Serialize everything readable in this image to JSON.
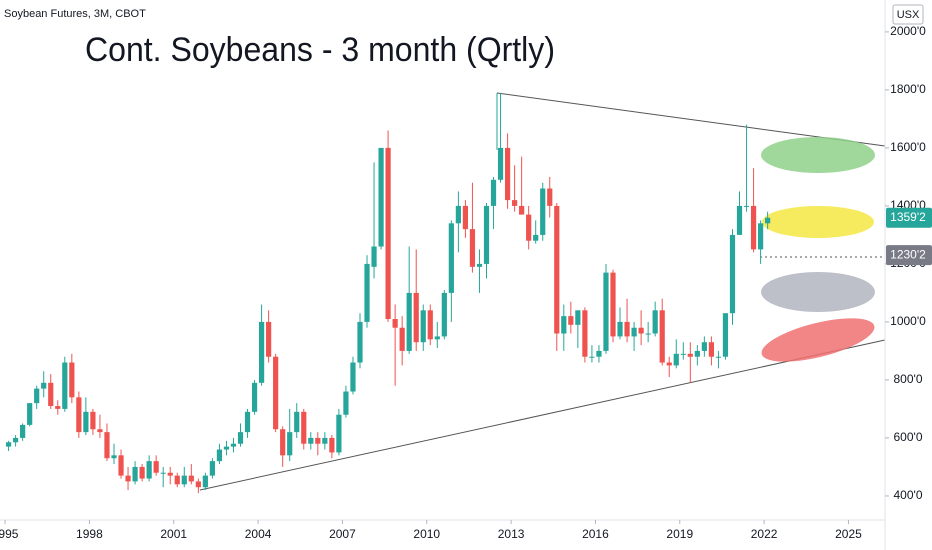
{
  "chart_data": {
    "type": "candlestick",
    "header": "Soybean Futures, 3M, CBOT",
    "title": "Cont. Soybeans - 3 month (Qrtly)",
    "currency": "USX",
    "up_color": "#26a69a",
    "down_color": "#ef5350",
    "x": [
      1995.125,
      1995.375,
      1995.625,
      1995.875,
      1996.125,
      1996.375,
      1996.625,
      1996.875,
      1997.125,
      1997.375,
      1997.625,
      1997.875,
      1998.125,
      1998.375,
      1998.625,
      1998.875,
      1999.125,
      1999.375,
      1999.625,
      1999.875,
      2000.125,
      2000.375,
      2000.625,
      2000.875,
      2001.125,
      2001.375,
      2001.625,
      2001.875,
      2002.125,
      2002.375,
      2002.625,
      2002.875,
      2003.125,
      2003.375,
      2003.625,
      2003.875,
      2004.125,
      2004.375,
      2004.625,
      2004.875,
      2005.125,
      2005.375,
      2005.625,
      2005.875,
      2006.125,
      2006.375,
      2006.625,
      2006.875,
      2007.125,
      2007.375,
      2007.625,
      2007.875,
      2008.125,
      2008.375,
      2008.625,
      2008.875,
      2009.125,
      2009.375,
      2009.625,
      2009.875,
      2010.125,
      2010.375,
      2010.625,
      2010.875,
      2011.125,
      2011.375,
      2011.625,
      2011.875,
      2012.125,
      2012.375,
      2012.625,
      2012.875,
      2013.125,
      2013.375,
      2013.625,
      2013.875,
      2014.125,
      2014.375,
      2014.625,
      2014.875,
      2015.125,
      2015.375,
      2015.625,
      2015.875,
      2016.125,
      2016.375,
      2016.625,
      2016.875,
      2017.125,
      2017.375,
      2017.625,
      2017.875,
      2018.125,
      2018.375,
      2018.625,
      2018.875,
      2019.125,
      2019.375,
      2019.625,
      2019.875,
      2020.125,
      2020.375,
      2020.625,
      2020.875,
      2021.125,
      2021.375,
      2021.625,
      2021.875,
      2022.125
    ],
    "open": [
      570,
      585,
      600,
      645,
      720,
      770,
      790,
      710,
      700,
      860,
      740,
      620,
      690,
      630,
      620,
      530,
      540,
      470,
      450,
      500,
      460,
      520,
      480,
      480,
      470,
      440,
      470,
      450,
      430,
      470,
      520,
      560,
      570,
      580,
      620,
      690,
      790,
      1000,
      880,
      630,
      540,
      620,
      690,
      580,
      600,
      580,
      600,
      550,
      680,
      760,
      860,
      1000,
      1190,
      1260,
      1600,
      1010,
      980,
      900,
      1100,
      930,
      1040,
      940,
      950,
      1100,
      1340,
      1400,
      1320,
      1190,
      1200,
      1400,
      1490,
      1600,
      1420,
      1400,
      1370,
      1280,
      1300,
      1460,
      1400,
      960,
      1020,
      990,
      1040,
      880,
      880,
      900,
      1170,
      950,
      1000,
      950,
      980,
      960,
      960,
      1040,
      860,
      850,
      890,
      890,
      880,
      900,
      930,
      880,
      880,
      1030,
      1300,
      1400,
      1400,
      1250,
      1340
    ],
    "high": [
      590,
      610,
      650,
      720,
      780,
      830,
      820,
      730,
      880,
      890,
      760,
      740,
      700,
      680,
      650,
      580,
      560,
      500,
      520,
      510,
      540,
      540,
      500,
      500,
      480,
      500,
      510,
      460,
      480,
      530,
      580,
      590,
      600,
      650,
      700,
      800,
      1060,
      1040,
      890,
      640,
      700,
      720,
      700,
      620,
      620,
      620,
      610,
      700,
      780,
      880,
      1030,
      1230,
      1550,
      1600,
      1660,
      1060,
      1020,
      1260,
      1250,
      1060,
      1060,
      1000,
      1110,
      1350,
      1450,
      1420,
      1480,
      1250,
      1410,
      1500,
      1790,
      1650,
      1540,
      1570,
      1400,
      1350,
      1480,
      1500,
      1410,
      1060,
      1070,
      1040,
      1050,
      920,
      920,
      1200,
      1180,
      1050,
      1080,
      1000,
      1040,
      1000,
      1070,
      1080,
      880,
      940,
      930,
      930,
      920,
      950,
      950,
      900,
      1030,
      1320,
      1450,
      1680,
      1530,
      1350,
      1380
    ],
    "low": [
      555,
      570,
      590,
      640,
      700,
      740,
      700,
      680,
      690,
      720,
      600,
      610,
      610,
      600,
      520,
      510,
      460,
      420,
      440,
      450,
      450,
      470,
      430,
      440,
      430,
      430,
      440,
      410,
      420,
      460,
      510,
      540,
      550,
      570,
      600,
      680,
      780,
      860,
      620,
      500,
      520,
      600,
      560,
      560,
      540,
      560,
      530,
      540,
      670,
      750,
      840,
      980,
      1150,
      1250,
      1000,
      780,
      850,
      890,
      900,
      900,
      920,
      910,
      940,
      1000,
      1240,
      1290,
      1170,
      1100,
      1150,
      1320,
      1480,
      1390,
      1380,
      1370,
      1250,
      1270,
      1280,
      1360,
      900,
      900,
      960,
      910,
      860,
      860,
      860,
      890,
      930,
      940,
      930,
      900,
      920,
      930,
      950,
      850,
      810,
      840,
      870,
      790,
      850,
      880,
      850,
      840,
      870,
      990,
      1300,
      1380,
      1240,
      1200,
      1320
    ],
    "close": [
      585,
      600,
      645,
      720,
      770,
      790,
      710,
      700,
      860,
      740,
      620,
      690,
      630,
      620,
      530,
      540,
      470,
      450,
      500,
      460,
      520,
      480,
      480,
      470,
      440,
      470,
      450,
      430,
      470,
      520,
      560,
      570,
      580,
      620,
      690,
      790,
      1000,
      880,
      630,
      540,
      620,
      690,
      580,
      600,
      580,
      600,
      550,
      680,
      760,
      860,
      1000,
      1200,
      1260,
      1600,
      1010,
      980,
      900,
      1100,
      930,
      1040,
      940,
      950,
      1100,
      1340,
      1400,
      1320,
      1190,
      1200,
      1400,
      1490,
      1600,
      1420,
      1400,
      1370,
      1280,
      1300,
      1460,
      1400,
      960,
      1020,
      990,
      1040,
      880,
      880,
      900,
      1170,
      950,
      1000,
      950,
      980,
      960,
      960,
      1040,
      860,
      850,
      890,
      890,
      880,
      900,
      930,
      880,
      880,
      1030,
      1300,
      1400,
      1400,
      1250,
      1340,
      1359.25
    ],
    "xlim": [
      1994.82,
      2026.3
    ],
    "xticks": [
      1995,
      1998,
      2001,
      2004,
      2007,
      2010,
      2013,
      2016,
      2019,
      2022,
      2025
    ],
    "ylim": [
      317,
      2110
    ],
    "yticks": [
      {
        "value": 2000,
        "label": "2000'0"
      },
      {
        "value": 1800,
        "label": "1800'0"
      },
      {
        "value": 1600,
        "label": "1600'0"
      },
      {
        "value": 1400,
        "label": "1400'0"
      },
      {
        "value": 1200,
        "label": "1200'0"
      },
      {
        "value": 1000,
        "label": "1000'0"
      },
      {
        "value": 800,
        "label": "800'0"
      },
      {
        "value": 600,
        "label": "600'0"
      },
      {
        "value": 400,
        "label": "400'0"
      }
    ],
    "price_labels": [
      {
        "value": 1359.25,
        "label": "1359'2",
        "color": "#26a69a"
      },
      {
        "value": 1230.25,
        "label": "1230'2",
        "color": "#787b86"
      }
    ]
  }
}
